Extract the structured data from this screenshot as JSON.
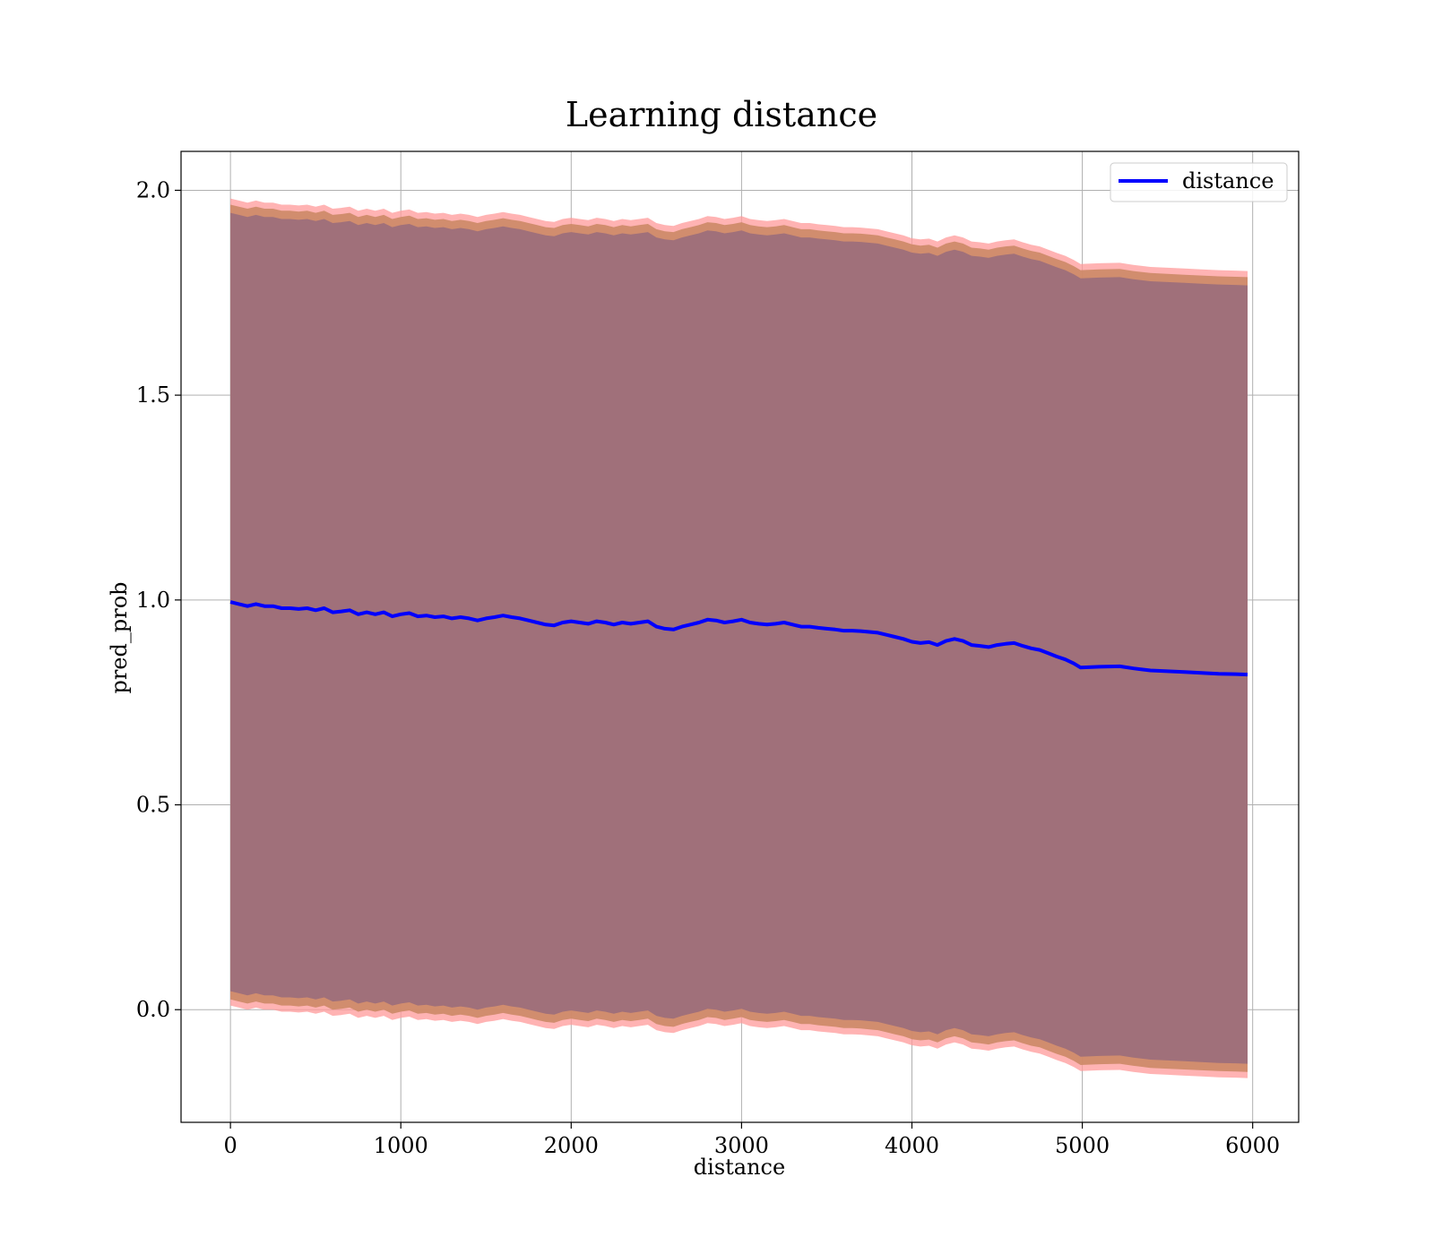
{
  "chart_data": {
    "type": "area",
    "title": "Learning distance",
    "xlabel": "distance",
    "ylabel": "pred_prob",
    "xlim": [
      -290,
      6270
    ],
    "ylim": [
      -0.275,
      2.095
    ],
    "xticks": [
      0,
      1000,
      2000,
      3000,
      4000,
      5000,
      6000
    ],
    "yticks": [
      0.0,
      0.5,
      1.0,
      1.5,
      2.0
    ],
    "xtick_labels": [
      "0",
      "1000",
      "2000",
      "3000",
      "4000",
      "5000",
      "6000"
    ],
    "ytick_labels": [
      "0.0",
      "0.5",
      "1.0",
      "1.5",
      "2.0"
    ],
    "grid": true,
    "legend": {
      "position": "top-right",
      "entries": [
        "distance"
      ]
    },
    "colors": {
      "line": "#0000ff",
      "outer_band": "#ff9999",
      "middle_band": "#cc8866",
      "inner_band": "#a0707a",
      "grid": "#b0b0b0"
    },
    "series": [
      {
        "name": "distance",
        "x": [
          0,
          50,
          100,
          150,
          200,
          250,
          300,
          350,
          400,
          450,
          500,
          550,
          600,
          650,
          700,
          750,
          800,
          850,
          900,
          950,
          1000,
          1050,
          1100,
          1150,
          1200,
          1250,
          1300,
          1350,
          1400,
          1450,
          1500,
          1550,
          1600,
          1650,
          1700,
          1750,
          1800,
          1850,
          1900,
          1950,
          2000,
          2050,
          2100,
          2150,
          2200,
          2250,
          2300,
          2350,
          2400,
          2450,
          2500,
          2550,
          2600,
          2650,
          2700,
          2750,
          2800,
          2850,
          2900,
          2950,
          3000,
          3050,
          3100,
          3150,
          3200,
          3250,
          3300,
          3350,
          3400,
          3450,
          3500,
          3550,
          3600,
          3650,
          3700,
          3750,
          3800,
          3850,
          3900,
          3950,
          4000,
          4050,
          4100,
          4150,
          4200,
          4250,
          4300,
          4350,
          4400,
          4450,
          4500,
          4550,
          4600,
          4650,
          4700,
          4750,
          4800,
          4850,
          4900,
          4950,
          4990,
          5100,
          5220,
          5300,
          5400,
          5500,
          5600,
          5700,
          5800,
          5900,
          5970
        ],
        "values": [
          0.995,
          0.99,
          0.985,
          0.99,
          0.985,
          0.985,
          0.98,
          0.98,
          0.978,
          0.98,
          0.975,
          0.98,
          0.97,
          0.972,
          0.975,
          0.965,
          0.97,
          0.965,
          0.97,
          0.96,
          0.965,
          0.968,
          0.96,
          0.962,
          0.958,
          0.96,
          0.955,
          0.958,
          0.955,
          0.95,
          0.955,
          0.958,
          0.962,
          0.958,
          0.955,
          0.95,
          0.945,
          0.94,
          0.938,
          0.945,
          0.948,
          0.945,
          0.942,
          0.948,
          0.945,
          0.94,
          0.945,
          0.942,
          0.945,
          0.948,
          0.935,
          0.93,
          0.928,
          0.935,
          0.94,
          0.945,
          0.952,
          0.95,
          0.945,
          0.948,
          0.952,
          0.945,
          0.942,
          0.94,
          0.942,
          0.945,
          0.94,
          0.935,
          0.935,
          0.932,
          0.93,
          0.928,
          0.925,
          0.925,
          0.924,
          0.922,
          0.92,
          0.915,
          0.91,
          0.905,
          0.898,
          0.895,
          0.897,
          0.89,
          0.9,
          0.905,
          0.9,
          0.89,
          0.888,
          0.885,
          0.89,
          0.893,
          0.895,
          0.888,
          0.882,
          0.878,
          0.87,
          0.862,
          0.855,
          0.845,
          0.835,
          0.837,
          0.838,
          0.833,
          0.828,
          0.826,
          0.824,
          0.822,
          0.82,
          0.819,
          0.818
        ],
        "band_outer_halfwidth": 0.985,
        "band_middle_halfwidth": 0.97,
        "band_inner_halfwidth": 0.95
      }
    ]
  }
}
